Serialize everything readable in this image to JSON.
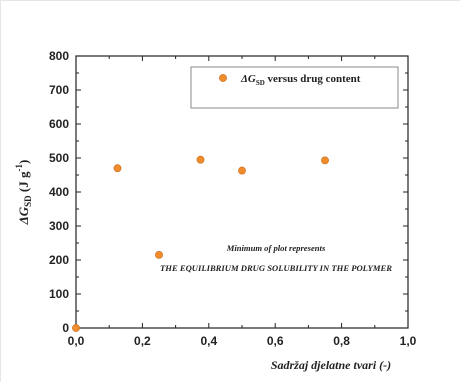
{
  "chart_data": {
    "type": "scatter",
    "xlabel": "Sadržaj djelatne tvari (-)",
    "ylabel": {
      "prefix": "ΔG",
      "subscript": "SD",
      "suffix": " (J g",
      "superscript": "-1",
      "close": ")"
    },
    "xlim": [
      0,
      1.0
    ],
    "ylim": [
      0,
      800
    ],
    "x_ticks": [
      "0,0",
      "0,2",
      "0,4",
      "0,6",
      "0,8",
      "1,0"
    ],
    "y_ticks": [
      "0",
      "100",
      "200",
      "300",
      "400",
      "500",
      "600",
      "700",
      "800"
    ],
    "grid": false,
    "legend_position": "top-right",
    "series": [
      {
        "name": {
          "prefix": "ΔG",
          "subscript": "SD",
          "suffix": " versus drug content"
        },
        "color": "#f08c2c",
        "points": [
          {
            "x": 0.0,
            "y": 0
          },
          {
            "x": 0.125,
            "y": 470
          },
          {
            "x": 0.25,
            "y": 215
          },
          {
            "x": 0.375,
            "y": 495
          },
          {
            "x": 0.5,
            "y": 463
          },
          {
            "x": 0.75,
            "y": 493
          }
        ]
      }
    ],
    "annotations": [
      "Minimum of plot represents",
      "THE EQUILIBRIUM DRUG SOLUBILITY IN THE POLYMER"
    ]
  }
}
